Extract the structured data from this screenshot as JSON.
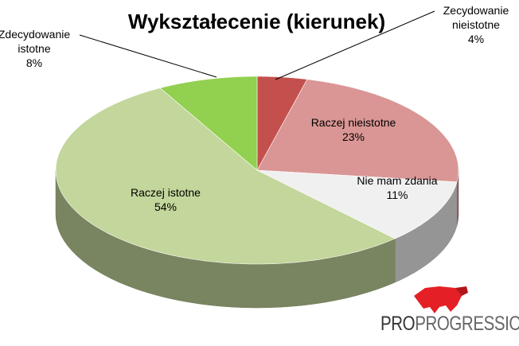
{
  "chart_data": {
    "type": "pie3d",
    "title": "Wykształecenie (kierunek)",
    "categories": [
      "Zecydowanie nieistotne",
      "Raczej nieistotne",
      "Nie mam zdania",
      "Raczej istotne",
      "Zdecydowanie istotne"
    ],
    "values": [
      4,
      23,
      11,
      54,
      8
    ],
    "value_labels": [
      "4%",
      "23%",
      "11%",
      "54%",
      "8%"
    ],
    "colors": [
      "#c4504d",
      "#d99694",
      "#f0f0f0",
      "#c3d69b",
      "#92d050"
    ]
  },
  "logo": {
    "prefix": "PRO",
    "suffix": "PROGRESSIO"
  }
}
